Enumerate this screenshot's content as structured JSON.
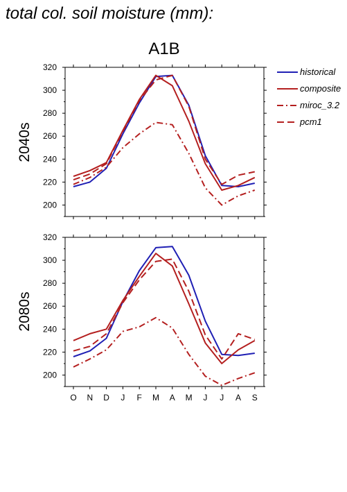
{
  "figure": {
    "title": "total col. soil moisture (mm):",
    "scenario": "A1B"
  },
  "colors": {
    "historical": "#1f1fb4",
    "model": "#b41f1f",
    "axis": "#000000"
  },
  "legend": [
    {
      "name": "historical",
      "color": "#1f1fb4",
      "dash": "solid"
    },
    {
      "name": "composite",
      "color": "#b41f1f",
      "dash": "solid"
    },
    {
      "name": "miroc_3.2",
      "color": "#b41f1f",
      "dash": "dashdot"
    },
    {
      "name": "pcm1",
      "color": "#b41f1f",
      "dash": "dash"
    }
  ],
  "chart_data": [
    {
      "type": "line",
      "panel_label": "2040s",
      "categories": [
        "O",
        "N",
        "D",
        "J",
        "F",
        "M",
        "A",
        "M",
        "J",
        "J",
        "A",
        "S"
      ],
      "ylim": [
        190,
        320
      ],
      "yticks": [
        200,
        220,
        240,
        260,
        280,
        300,
        320
      ],
      "series": [
        {
          "name": "historical",
          "values": [
            216,
            220,
            232,
            262,
            289,
            312,
            313,
            287,
            243,
            217,
            216,
            219
          ]
        },
        {
          "name": "composite",
          "values": [
            225,
            230,
            237,
            265,
            292,
            313,
            304,
            273,
            236,
            213,
            217,
            224
          ]
        },
        {
          "name": "miroc_3.2",
          "values": [
            218,
            224,
            233,
            250,
            262,
            272,
            270,
            245,
            215,
            200,
            208,
            213
          ]
        },
        {
          "name": "pcm1",
          "values": [
            222,
            227,
            236,
            264,
            291,
            309,
            313,
            286,
            240,
            218,
            226,
            229
          ]
        }
      ]
    },
    {
      "type": "line",
      "panel_label": "2080s",
      "categories": [
        "O",
        "N",
        "D",
        "J",
        "F",
        "M",
        "A",
        "M",
        "J",
        "J",
        "A",
        "S"
      ],
      "ylim": [
        190,
        320
      ],
      "yticks": [
        200,
        220,
        240,
        260,
        280,
        300,
        320
      ],
      "series": [
        {
          "name": "historical",
          "values": [
            216,
            221,
            232,
            264,
            291,
            311,
            312,
            287,
            247,
            218,
            217,
            219
          ]
        },
        {
          "name": "composite",
          "values": [
            230,
            236,
            240,
            265,
            286,
            306,
            295,
            262,
            228,
            210,
            222,
            230
          ]
        },
        {
          "name": "miroc_3.2",
          "values": [
            207,
            214,
            222,
            238,
            242,
            250,
            241,
            218,
            199,
            191,
            197,
            202
          ]
        },
        {
          "name": "pcm1",
          "values": [
            221,
            225,
            236,
            263,
            283,
            299,
            301,
            273,
            235,
            214,
            236,
            231
          ]
        }
      ]
    }
  ]
}
